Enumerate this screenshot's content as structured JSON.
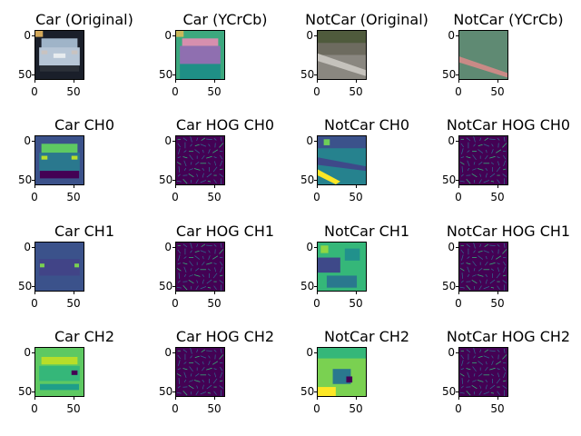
{
  "figure": {
    "panels": [
      {
        "title": "Car (Original)",
        "kind": "car-original"
      },
      {
        "title": "Car (YCrCb)",
        "kind": "car-ycrcb"
      },
      {
        "title": "NotCar (Original)",
        "kind": "notcar-original"
      },
      {
        "title": "NotCar (YCrCb)",
        "kind": "notcar-ycrcb"
      },
      {
        "title": "Car CH0",
        "kind": "car-ch0"
      },
      {
        "title": "Car HOG CH0",
        "kind": "hog"
      },
      {
        "title": "NotCar CH0",
        "kind": "notcar-ch0"
      },
      {
        "title": "NotCar HOG CH0",
        "kind": "hog"
      },
      {
        "title": "Car CH1",
        "kind": "car-ch1"
      },
      {
        "title": "Car HOG CH1",
        "kind": "hog"
      },
      {
        "title": "NotCar CH1",
        "kind": "notcar-ch1"
      },
      {
        "title": "NotCar HOG CH1",
        "kind": "hog"
      },
      {
        "title": "Car CH2",
        "kind": "car-ch2"
      },
      {
        "title": "Car HOG CH2",
        "kind": "hog"
      },
      {
        "title": "NotCar CH2",
        "kind": "notcar-ch2"
      },
      {
        "title": "NotCar HOG CH2",
        "kind": "hog"
      }
    ],
    "y_ticks": [
      "0",
      "50"
    ],
    "x_ticks": [
      "0",
      "50"
    ],
    "colors": {
      "viridis_dark": "#440154",
      "viridis_blue": "#31688e",
      "viridis_teal": "#21918c",
      "viridis_green": "#35b779",
      "viridis_yellow": "#fde725"
    }
  }
}
